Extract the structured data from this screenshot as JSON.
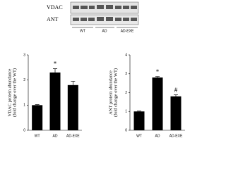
{
  "blot": {
    "rows": [
      "VDAC",
      "ANT"
    ],
    "groups": [
      "WT",
      "AD",
      "AD-EXE"
    ]
  },
  "chart_data": [
    {
      "type": "bar",
      "ylabel": [
        "VDAC protein abundance",
        "(fold change over the WT)"
      ],
      "categories": [
        "WT",
        "AD",
        "AD-EXE"
      ],
      "values": [
        1,
        2.3,
        1.8
      ],
      "errors": [
        0.02,
        0.15,
        0.15
      ],
      "significance": [
        null,
        "*",
        null
      ],
      "color": "#000000",
      "ylim": [
        0,
        3
      ],
      "yticks": [
        0,
        1,
        2,
        3
      ]
    },
    {
      "type": "bar",
      "ylabel": [
        "ANT protein abundance",
        "(fold change over the WT)"
      ],
      "categories": [
        "WT",
        "AD",
        "AD-EXE"
      ],
      "values": [
        1,
        2.8,
        1.8
      ],
      "errors": [
        0.02,
        0.05,
        0.08
      ],
      "significance": [
        null,
        "*",
        "#"
      ],
      "color": "#000000",
      "ylim": [
        0,
        4
      ],
      "yticks": [
        0,
        1,
        2,
        3,
        4
      ]
    }
  ]
}
